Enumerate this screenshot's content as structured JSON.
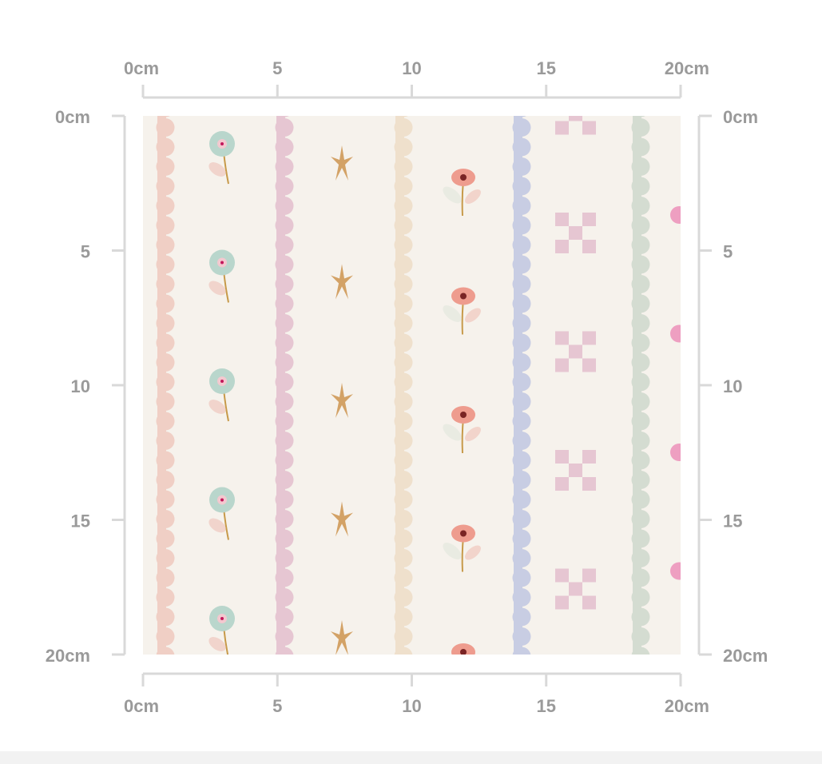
{
  "rulers": {
    "top": [
      "0cm",
      "5",
      "10",
      "15",
      "20cm"
    ],
    "left": [
      "0cm",
      "5",
      "10",
      "15",
      "20cm"
    ],
    "right": [
      "0cm",
      "5",
      "10",
      "15",
      "20cm"
    ],
    "bottom": [
      "0cm",
      "5",
      "10",
      "15",
      "20cm"
    ]
  }
}
